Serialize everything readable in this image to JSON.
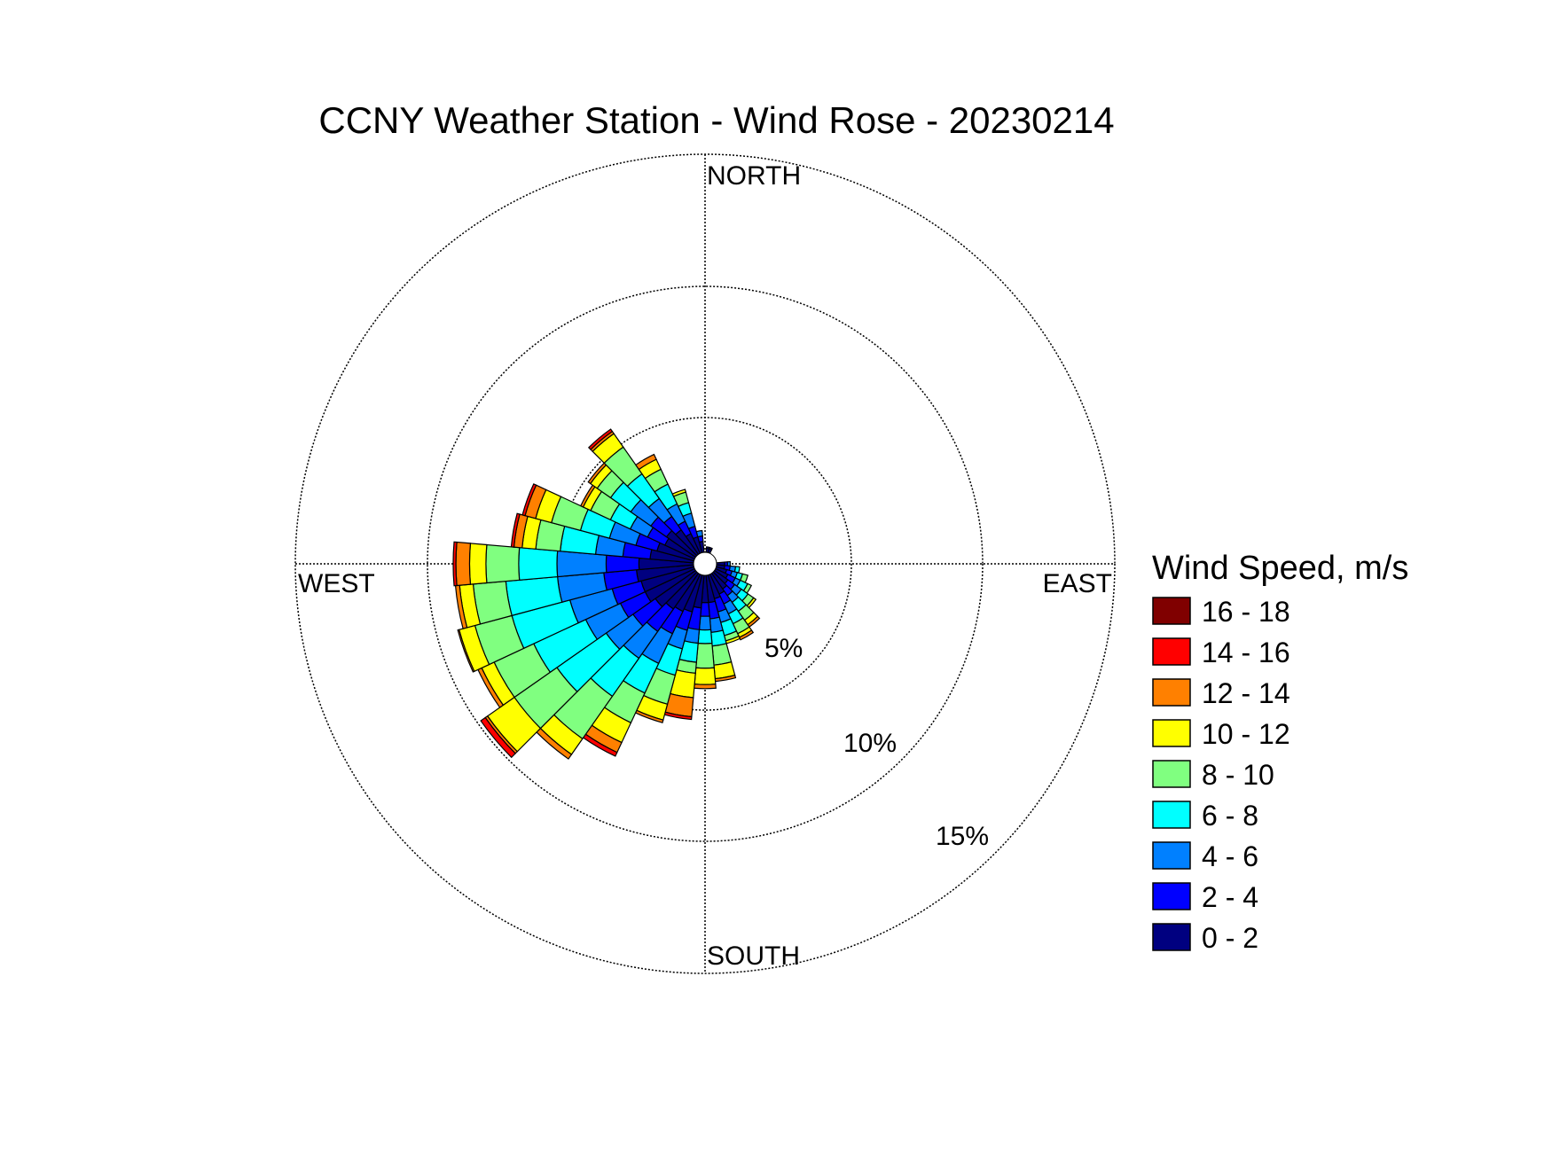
{
  "chart_data": {
    "type": "wind-rose",
    "title": "CCNY Weather Station - Wind Rose - 20230214",
    "legend_title": "Wind Speed, m/s",
    "legend_position": "right",
    "directions": [
      "NORTH",
      "EAST",
      "SOUTH",
      "WEST"
    ],
    "radial_ticks": [
      "5%",
      "10%",
      "15%"
    ],
    "radial_max": 15,
    "speed_bins": [
      {
        "label": "16 - 18",
        "color": "#800000"
      },
      {
        "label": "14 - 16",
        "color": "#ff0000"
      },
      {
        "label": "12 - 14",
        "color": "#ff8000"
      },
      {
        "label": "10 - 12",
        "color": "#ffff00"
      },
      {
        "label": "8 - 10",
        "color": "#80ff80"
      },
      {
        "label": "6 - 8",
        "color": "#00ffff"
      },
      {
        "label": "4 - 6",
        "color": "#0080ff"
      },
      {
        "label": "2 - 4",
        "color": "#0000ff"
      },
      {
        "label": "0 - 2",
        "color": "#000080"
      }
    ],
    "sector_width_deg": 10,
    "sectors_note": "Cumulative percent per speed bin, ordered 0-2 through 16-18",
    "sectors": [
      {
        "dir": 10,
        "cum": [
          0.15,
          0.2
        ]
      },
      {
        "dir": 20,
        "cum": [
          0.15,
          0.2
        ]
      },
      {
        "dir": 90,
        "cum": [
          0.3,
          0.4,
          0.5
        ]
      },
      {
        "dir": 100,
        "cum": [
          0.3,
          0.5,
          0.7,
          0.85
        ]
      },
      {
        "dir": 110,
        "cum": [
          0.4,
          0.6,
          0.8,
          1.0,
          1.2
        ]
      },
      {
        "dir": 120,
        "cum": [
          0.5,
          0.8,
          1.0,
          1.3,
          1.45
        ]
      },
      {
        "dir": 130,
        "cum": [
          0.6,
          0.9,
          1.2,
          1.5,
          1.75,
          1.85
        ]
      },
      {
        "dir": 140,
        "cum": [
          0.7,
          1.0,
          1.3,
          1.7,
          2.1,
          2.3,
          2.4
        ]
      },
      {
        "dir": 150,
        "cum": [
          0.8,
          1.2,
          1.6,
          2.0,
          2.4,
          2.55,
          2.65
        ]
      },
      {
        "dir": 160,
        "cum": [
          0.9,
          1.4,
          1.8,
          2.3,
          2.5,
          2.6
        ]
      },
      {
        "dir": 170,
        "cum": [
          1.0,
          1.6,
          2.1,
          2.6,
          3.3,
          3.8,
          3.9
        ]
      },
      {
        "dir": 180,
        "cum": [
          1.0,
          1.5,
          2.0,
          2.5,
          3.4,
          4.0,
          4.15
        ]
      },
      {
        "dir": 190,
        "cum": [
          1.2,
          2.0,
          2.5,
          3.2,
          3.6,
          4.5,
          5.2,
          5.3
        ]
      },
      {
        "dir": 200,
        "cum": [
          1.4,
          2.1,
          2.8,
          3.8,
          4.9,
          5.5,
          5.6
        ]
      },
      {
        "dir": 210,
        "cum": [
          1.5,
          2.4,
          3.6,
          4.8,
          6.0,
          6.8,
          7.2,
          7.35
        ]
      },
      {
        "dir": 220,
        "cum": [
          1.6,
          2.6,
          3.8,
          5.5,
          7.4,
          8.1,
          8.3
        ]
      },
      {
        "dir": 230,
        "cum": [
          1.8,
          2.8,
          4.0,
          6.2,
          8.1,
          9.3,
          9.4,
          9.6
        ]
      },
      {
        "dir": 240,
        "cum": [
          2.0,
          3.0,
          4.4,
          6.5,
          8.1,
          8.6,
          8.75
        ]
      },
      {
        "dir": 250,
        "cum": [
          2.0,
          3.1,
          4.7,
          6.9,
          8.3,
          8.9,
          8.95
        ]
      },
      {
        "dir": 260,
        "cum": [
          2.1,
          3.3,
          5.0,
          6.9,
          8.1,
          8.6,
          8.75
        ]
      },
      {
        "dir": 270,
        "cum": [
          2.0,
          3.2,
          5.0,
          6.4,
          7.6,
          8.2,
          8.7,
          8.8
        ]
      },
      {
        "dir": 280,
        "cum": [
          1.6,
          2.6,
          3.6,
          4.9,
          5.8,
          6.3,
          6.6,
          6.7
        ]
      },
      {
        "dir": 290,
        "cum": [
          1.4,
          2.2,
          3.2,
          4.3,
          5.4,
          6.0,
          6.4,
          6.5
        ]
      },
      {
        "dir": 300,
        "cum": [
          1.2,
          1.9,
          2.6,
          3.4,
          4.2,
          4.5,
          4.6
        ]
      },
      {
        "dir": 310,
        "cum": [
          1.3,
          2.0,
          2.9,
          3.8,
          4.4,
          4.7,
          4.8
        ]
      },
      {
        "dir": 320,
        "cum": [
          1.1,
          1.7,
          2.5,
          3.6,
          4.8,
          5.4,
          5.5,
          5.6
        ]
      },
      {
        "dir": 330,
        "cum": [
          0.8,
          1.3,
          2.0,
          2.8,
          3.4,
          3.8,
          4.0
        ]
      },
      {
        "dir": 340,
        "cum": [
          0.6,
          1.0,
          1.5,
          1.9,
          2.3,
          2.4
        ]
      },
      {
        "dir": 350,
        "cum": [
          0.4,
          0.6,
          0.8
        ]
      }
    ]
  }
}
